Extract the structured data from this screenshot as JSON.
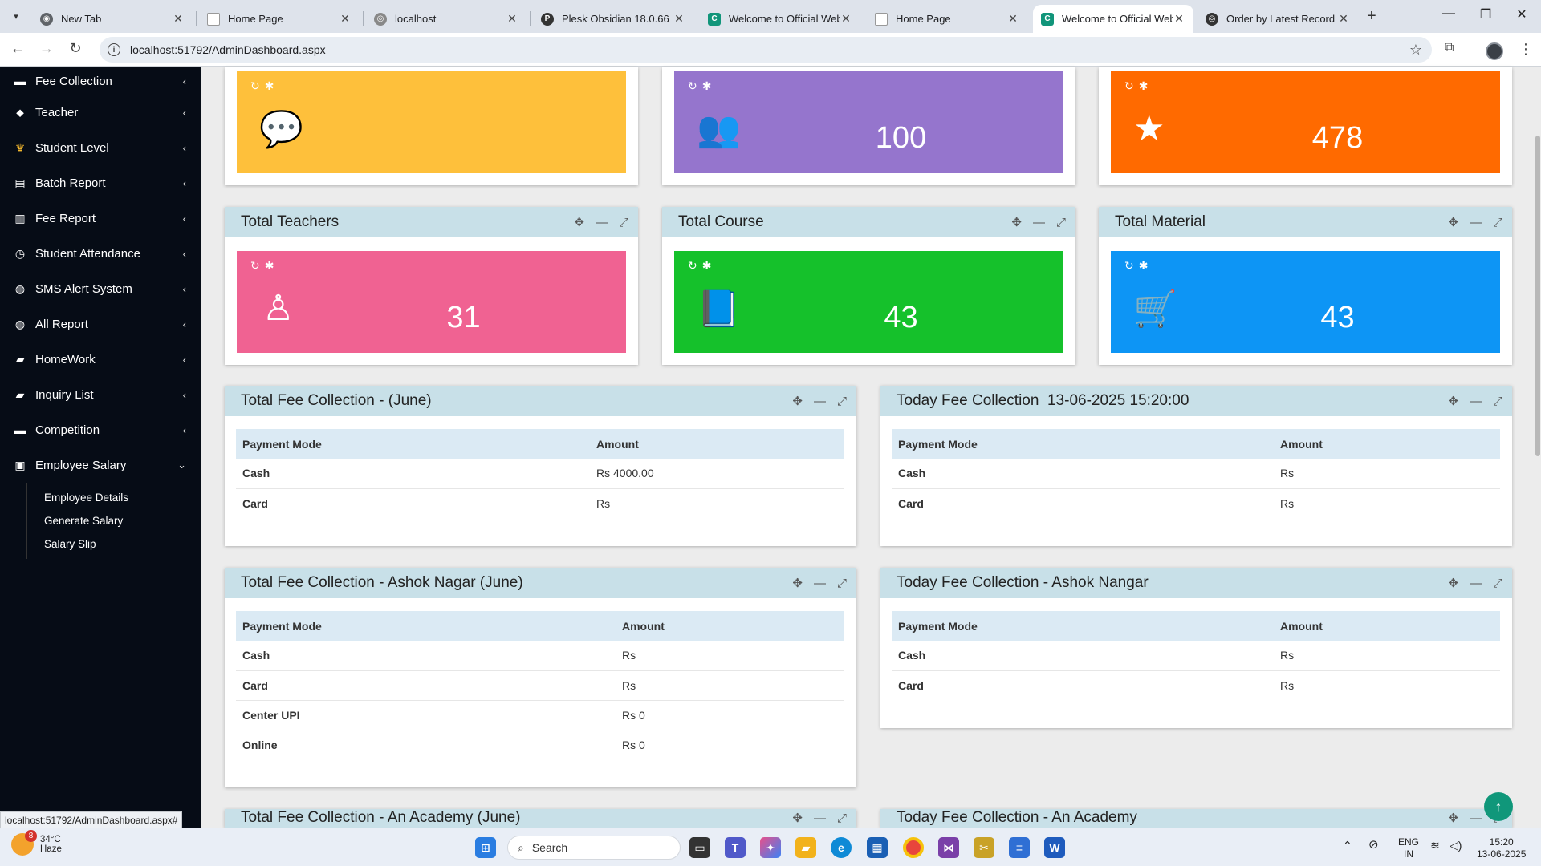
{
  "browser": {
    "tabs": [
      {
        "title": "New Tab"
      },
      {
        "title": "Home Page"
      },
      {
        "title": "localhost"
      },
      {
        "title": "Plesk Obsidian 18.0.66"
      },
      {
        "title": "Welcome to Official Webs"
      },
      {
        "title": "Home Page"
      },
      {
        "title": "Welcome to Official Webs"
      },
      {
        "title": "Order by Latest Record"
      }
    ],
    "url": "localhost:51792/AdminDashboard.aspx",
    "status_url": "localhost:51792/AdminDashboard.aspx#"
  },
  "sidebar": {
    "items": [
      {
        "label": "Fee Collection",
        "icon": "card-icon"
      },
      {
        "label": "Teacher",
        "icon": "tag-icon"
      },
      {
        "label": "Student Level",
        "icon": "trophy-icon"
      },
      {
        "label": "Batch Report",
        "icon": "file-icon"
      },
      {
        "label": "Fee Report",
        "icon": "bar-chart-icon"
      },
      {
        "label": "Student Attendance",
        "icon": "clock-icon"
      },
      {
        "label": "SMS Alert System",
        "icon": "chat-icon"
      },
      {
        "label": "All Report",
        "icon": "chat-icon"
      },
      {
        "label": "HomeWork",
        "icon": "book-icon"
      },
      {
        "label": "Inquiry List",
        "icon": "book-icon"
      },
      {
        "label": "Competition",
        "icon": "card-icon"
      },
      {
        "label": "Employee Salary",
        "icon": "money-icon"
      }
    ],
    "sub_items": [
      "Employee Details",
      "Generate Salary",
      "Salary Slip"
    ]
  },
  "top_tiles": [
    {
      "value": "",
      "color": "#fec03b",
      "icon": "comments-icon"
    },
    {
      "value": "100",
      "color": "#9575cd",
      "icon": "users-icon"
    },
    {
      "value": "478",
      "color": "#ff6a00",
      "icon": "star-icon"
    }
  ],
  "stat_panels": [
    {
      "title": "Total Teachers",
      "value": "31",
      "color": "#f06292",
      "icon": "person-icon"
    },
    {
      "title": "Total Course",
      "value": "43",
      "color": "#15c12b",
      "icon": "book-icon"
    },
    {
      "title": "Total Material",
      "value": "43",
      "color": "#0d95f5",
      "icon": "cart-download-icon"
    }
  ],
  "fee_tables": [
    {
      "title": "Total Fee Collection - (June)",
      "headers": [
        "Payment Mode",
        "Amount"
      ],
      "rows": [
        [
          "Cash",
          "Rs 4000.00"
        ],
        [
          "Card",
          "Rs"
        ]
      ]
    },
    {
      "title": "Today Fee Collection  13-06-2025 15:20:00",
      "headers": [
        "Payment Mode",
        "Amount"
      ],
      "rows": [
        [
          "Cash",
          "Rs"
        ],
        [
          "Card",
          "Rs"
        ]
      ]
    },
    {
      "title": "Total Fee Collection - Ashok Nagar (June)",
      "headers": [
        "Payment Mode",
        "Amount"
      ],
      "rows": [
        [
          "Cash",
          "Rs"
        ],
        [
          "Card",
          "Rs"
        ],
        [
          "Center UPI",
          "Rs 0"
        ],
        [
          "Online",
          "Rs 0"
        ]
      ]
    },
    {
      "title": "Today Fee Collection - Ashok Nangar",
      "headers": [
        "Payment Mode",
        "Amount"
      ],
      "rows": [
        [
          "Cash",
          "Rs"
        ],
        [
          "Card",
          "Rs"
        ]
      ]
    },
    {
      "title": "Total Fee Collection - An Academy (June)",
      "headers": [],
      "rows": []
    },
    {
      "title": "Today Fee Collection - An Academy",
      "headers": [],
      "rows": []
    }
  ],
  "taskbar": {
    "weather_temp": "34°C",
    "weather_desc": "Haze",
    "weather_badge": "8",
    "search_placeholder": "Search",
    "lang_1": "ENG",
    "lang_2": "IN",
    "time": "15:20",
    "date": "13-06-2025"
  }
}
